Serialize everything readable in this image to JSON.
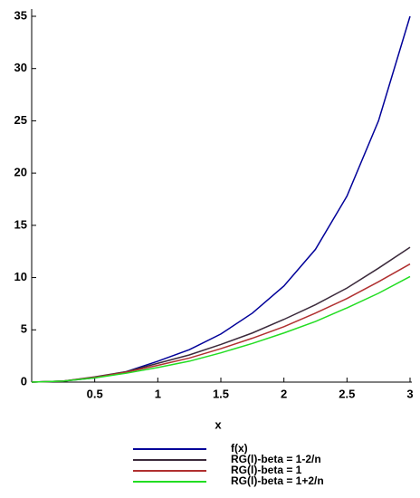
{
  "chart_data": {
    "type": "line",
    "x_label": "x",
    "x": [
      0,
      0.25,
      0.5,
      0.75,
      1,
      1.25,
      1.5,
      1.75,
      2,
      2.25,
      2.5,
      2.75,
      3
    ],
    "series": [
      {
        "name": "f(x)",
        "color": "#000099",
        "values": [
          0,
          0.1,
          0.4,
          1.0,
          2.0,
          3.1,
          4.6,
          6.6,
          9.2,
          12.7,
          17.8,
          25.0,
          35
        ]
      },
      {
        "name": "RG(l)-beta = 1-2/n",
        "color": "#3b2a3b",
        "values": [
          0,
          0.1,
          0.5,
          1.0,
          1.8,
          2.6,
          3.6,
          4.7,
          6.0,
          7.4,
          9.0,
          10.9,
          12.9
        ]
      },
      {
        "name": "RG(l)-beta = 1",
        "color": "#b03030",
        "values": [
          0,
          0.1,
          0.45,
          0.95,
          1.6,
          2.3,
          3.2,
          4.2,
          5.3,
          6.6,
          8.0,
          9.6,
          11.3
        ]
      },
      {
        "name": "RG(l)-beta = 1+2/n",
        "color": "#22dd22",
        "values": [
          0,
          0.1,
          0.4,
          0.85,
          1.4,
          2.0,
          2.8,
          3.7,
          4.7,
          5.8,
          7.1,
          8.5,
          10.1
        ]
      }
    ],
    "xlim": [
      0,
      3
    ],
    "ylim": [
      0,
      35
    ],
    "xticks": [
      0.5,
      1,
      1.5,
      2,
      2.5,
      3
    ],
    "yticks": [
      0,
      5,
      10,
      15,
      20,
      25,
      30,
      35
    ]
  }
}
